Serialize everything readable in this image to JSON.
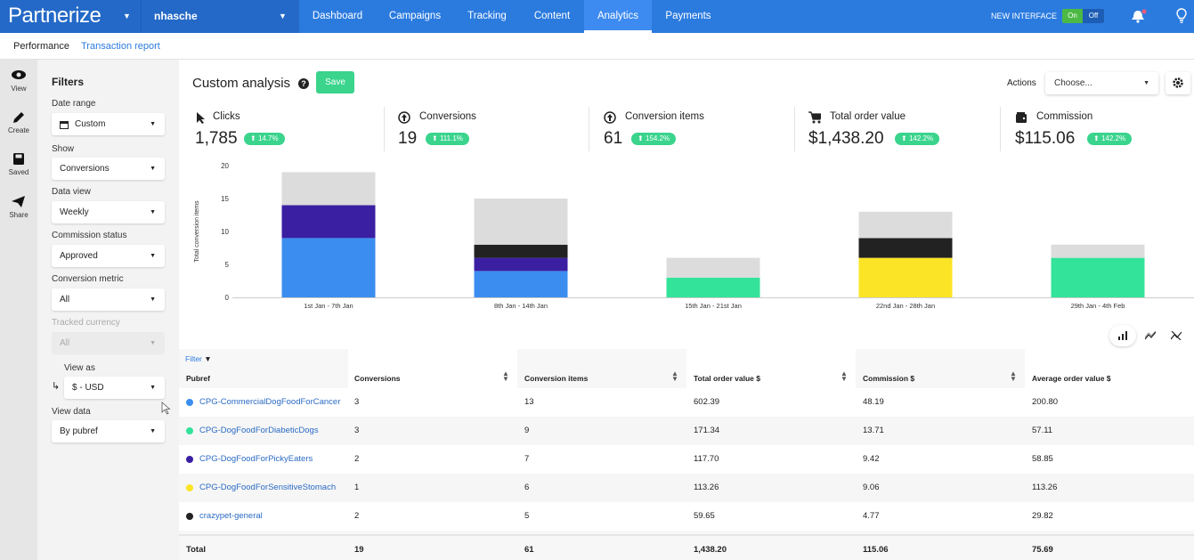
{
  "app": {
    "logo": "Partnerize",
    "user": "nhasche",
    "new_interface_label": "NEW INTERFACE",
    "toggle_on": "On",
    "toggle_off": "Off"
  },
  "nav": [
    "Dashboard",
    "Campaigns",
    "Tracking",
    "Content",
    "Analytics",
    "Payments"
  ],
  "subnav": [
    "Performance",
    "Transaction report"
  ],
  "rail": [
    {
      "icon": "eye-icon",
      "label": "View"
    },
    {
      "icon": "pencil-icon",
      "label": "Create"
    },
    {
      "icon": "floppy-icon",
      "label": "Saved"
    },
    {
      "icon": "paper-plane-icon",
      "label": "Share"
    }
  ],
  "filters": {
    "heading": "Filters",
    "date_range": {
      "label": "Date range",
      "value": "Custom"
    },
    "show": {
      "label": "Show",
      "value": "Conversions"
    },
    "data_view": {
      "label": "Data view",
      "value": "Weekly"
    },
    "commission_status": {
      "label": "Commission status",
      "value": "Approved"
    },
    "conversion_metric": {
      "label": "Conversion metric",
      "value": "All"
    },
    "tracked_currency": {
      "label": "Tracked currency",
      "value": "All"
    },
    "view_as": {
      "label": "View as",
      "value": "$ - USD"
    },
    "view_data": {
      "label": "View data",
      "value": "By pubref"
    }
  },
  "header": {
    "title": "Custom analysis",
    "save": "Save",
    "actions_label": "Actions",
    "actions_placeholder": "Choose..."
  },
  "kpis": [
    {
      "label": "Clicks",
      "value": "1,785",
      "change": "14.7%",
      "icon": "cursor-icon"
    },
    {
      "label": "Conversions",
      "value": "19",
      "change": "111.1%",
      "icon": "arrow-circle-icon"
    },
    {
      "label": "Conversion items",
      "value": "61",
      "change": "154.2%",
      "icon": "arrow-circle-icon"
    },
    {
      "label": "Total order value",
      "value": "$1,438.20",
      "change": "142.2%",
      "icon": "cart-icon"
    },
    {
      "label": "Commission",
      "value": "$115.06",
      "change": "142.2%",
      "icon": "wallet-icon"
    }
  ],
  "colors": {
    "blue": "#3b8ef0",
    "purple": "#3b1fa3",
    "black": "#222222",
    "yellow": "#fbe425",
    "green": "#33e39a",
    "grey": "#dcdcdc"
  },
  "chart_data": {
    "type": "bar",
    "stacked": true,
    "ylabel": "Total conversion items",
    "ylim": [
      0,
      20
    ],
    "yticks": [
      0,
      5,
      10,
      15,
      20
    ],
    "categories": [
      "1st Jan - 7th Jan",
      "8th Jan - 14th Jan",
      "15th Jan - 21st Jan",
      "22nd Jan - 28th Jan",
      "29th Jan - 4th Feb"
    ],
    "series": [
      {
        "color": "#3b8ef0",
        "values": [
          9,
          4,
          0,
          0,
          0
        ]
      },
      {
        "color": "#33e39a",
        "values": [
          0,
          0,
          3,
          0,
          6
        ]
      },
      {
        "color": "#3b1fa3",
        "values": [
          5,
          2,
          0,
          0,
          0
        ]
      },
      {
        "color": "#fbe425",
        "values": [
          0,
          0,
          0,
          6,
          0
        ]
      },
      {
        "color": "#222222",
        "values": [
          0,
          2,
          0,
          3,
          0
        ]
      },
      {
        "color": "#dcdcdc",
        "values": [
          5,
          7,
          3,
          4,
          2
        ]
      }
    ]
  },
  "table": {
    "filter_label": "Filter",
    "headers": [
      "Pubref",
      "Conversions",
      "Conversion items",
      "Total order value $",
      "Commission $",
      "Average order value $"
    ],
    "rows": [
      {
        "color": "#3b8ef0",
        "cells": [
          "CPG-CommercialDogFoodForCancer",
          "3",
          "13",
          "602.39",
          "48.19",
          "200.80"
        ]
      },
      {
        "color": "#33e39a",
        "cells": [
          "CPG-DogFoodForDiabeticDogs",
          "3",
          "9",
          "171.34",
          "13.71",
          "57.11"
        ]
      },
      {
        "color": "#3b1fa3",
        "cells": [
          "CPG-DogFoodForPickyEaters",
          "2",
          "7",
          "117.70",
          "9.42",
          "58.85"
        ]
      },
      {
        "color": "#fbe425",
        "cells": [
          "CPG-DogFoodForSensitiveStomach",
          "1",
          "6",
          "113.26",
          "9.06",
          "113.26"
        ]
      },
      {
        "color": "#222222",
        "cells": [
          "crazypet-general",
          "2",
          "5",
          "59.65",
          "4.77",
          "29.82"
        ]
      }
    ],
    "total": [
      "Total",
      "19",
      "61",
      "1,438.20",
      "115.06",
      "75.69"
    ]
  }
}
